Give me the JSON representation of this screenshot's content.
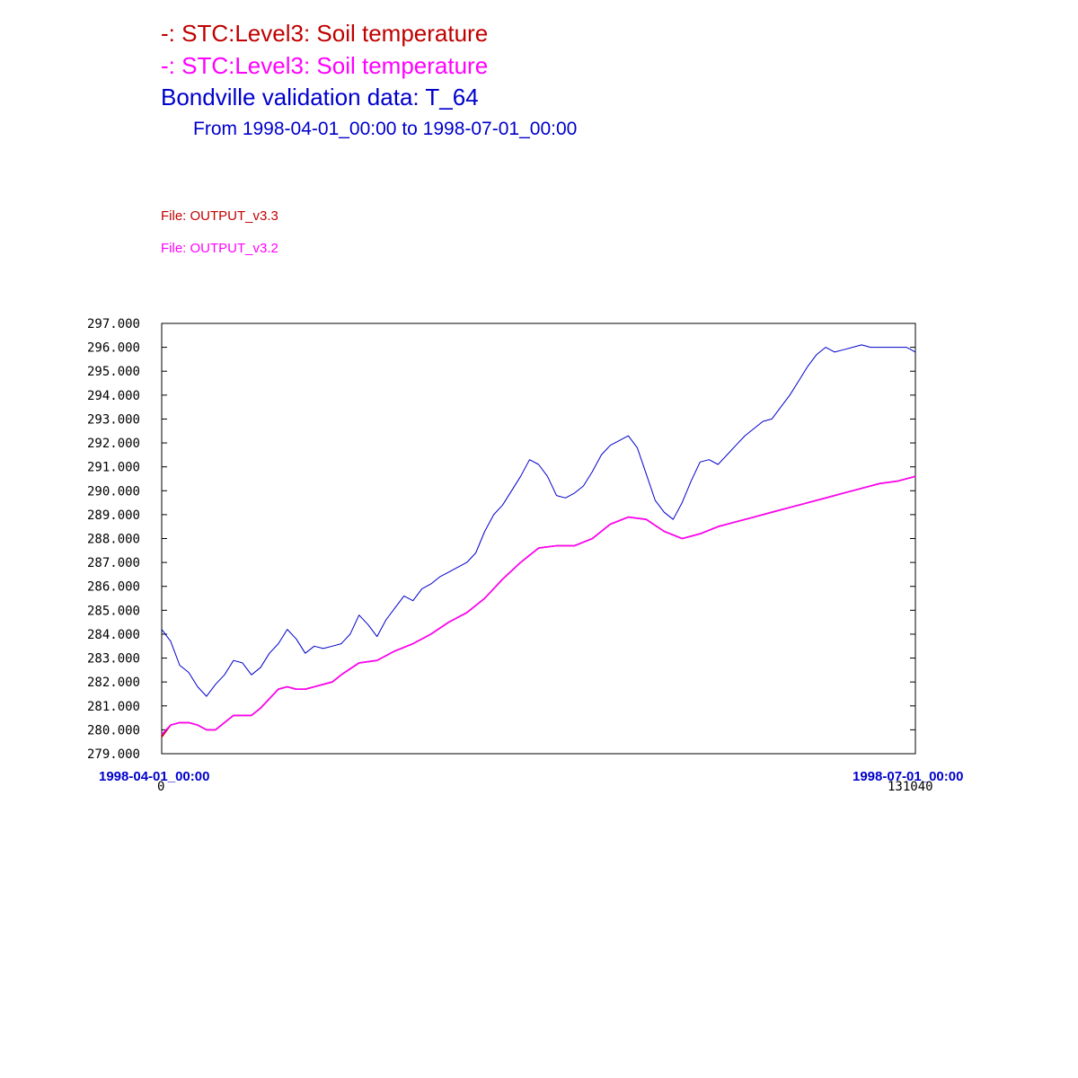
{
  "legend": {
    "series1": "-:  STC:Level3: Soil temperature",
    "series2": "-:  STC:Level3: Soil temperature",
    "observed": "Bondville validation data:  T_64",
    "period": "From 1998-04-01_00:00 to 1998-07-01_00:00",
    "file1": "File: OUTPUT_v3.3",
    "file2": "File: OUTPUT_v3.2"
  },
  "colors": {
    "series1": "#c00000",
    "series2": "#ff00ff",
    "observed": "#0000cc"
  },
  "chart_data": {
    "type": "line",
    "x_label_start": "1998-04-01_00:00",
    "x_label_end": "1998-07-01_00:00",
    "x_tick_start": "0",
    "x_tick_end": "131040",
    "xlim": [
      0,
      131040
    ],
    "ylim": [
      279,
      297
    ],
    "y_ticks": [
      "279.000",
      "280.000",
      "281.000",
      "282.000",
      "283.000",
      "284.000",
      "285.000",
      "286.000",
      "287.000",
      "288.000",
      "289.000",
      "290.000",
      "291.000",
      "292.000",
      "293.000",
      "294.000",
      "295.000",
      "296.000",
      "297.000"
    ],
    "grid": false,
    "series": [
      {
        "name": "STC:Level3: Soil temperature (OUTPUT_v3.3)",
        "color": "#c00000",
        "x": [
          0,
          1560,
          3120,
          4680,
          6240,
          7800,
          9360,
          10920,
          12480,
          14040,
          15600,
          17160,
          18720,
          20280,
          21840,
          23400,
          24960,
          26520,
          28080,
          29640,
          31200,
          34320,
          37440,
          40560,
          43680,
          46800,
          49920,
          53040,
          56160,
          59280,
          62400,
          65520,
          68640,
          71760,
          74880,
          78000,
          81120,
          84240,
          87360,
          90480,
          93600,
          96720,
          99840,
          102960,
          106080,
          109200,
          112320,
          115440,
          118560,
          121680,
          124800,
          127920,
          131040
        ],
        "values": [
          279.7,
          280.2,
          280.3,
          280.3,
          280.2,
          280.0,
          280.0,
          280.3,
          280.6,
          280.6,
          280.6,
          280.9,
          281.3,
          281.7,
          281.8,
          281.7,
          281.7,
          281.8,
          281.9,
          282.0,
          282.3,
          282.8,
          282.9,
          283.3,
          283.6,
          284.0,
          284.5,
          284.9,
          285.5,
          286.3,
          287.0,
          287.6,
          287.7,
          287.7,
          288.0,
          288.6,
          288.9,
          288.8,
          288.3,
          288.0,
          288.2,
          288.5,
          288.7,
          288.9,
          289.1,
          289.3,
          289.5,
          289.7,
          289.9,
          290.1,
          290.3,
          290.4,
          290.6
        ]
      },
      {
        "name": "STC:Level3: Soil temperature (OUTPUT_v3.2)",
        "color": "#ff00ff",
        "x": [
          0,
          1560,
          3120,
          4680,
          6240,
          7800,
          9360,
          10920,
          12480,
          14040,
          15600,
          17160,
          18720,
          20280,
          21840,
          23400,
          24960,
          26520,
          28080,
          29640,
          31200,
          34320,
          37440,
          40560,
          43680,
          46800,
          49920,
          53040,
          56160,
          59280,
          62400,
          65520,
          68640,
          71760,
          74880,
          78000,
          81120,
          84240,
          87360,
          90480,
          93600,
          96720,
          99840,
          102960,
          106080,
          109200,
          112320,
          115440,
          118560,
          121680,
          124800,
          127920,
          131040
        ],
        "values": [
          279.8,
          280.2,
          280.3,
          280.3,
          280.2,
          280.0,
          280.0,
          280.3,
          280.6,
          280.6,
          280.6,
          280.9,
          281.3,
          281.7,
          281.8,
          281.7,
          281.7,
          281.8,
          281.9,
          282.0,
          282.3,
          282.8,
          282.9,
          283.3,
          283.6,
          284.0,
          284.5,
          284.9,
          285.5,
          286.3,
          287.0,
          287.6,
          287.7,
          287.7,
          288.0,
          288.6,
          288.9,
          288.8,
          288.3,
          288.0,
          288.2,
          288.5,
          288.7,
          288.9,
          289.1,
          289.3,
          289.5,
          289.7,
          289.9,
          290.1,
          290.3,
          290.4,
          290.6
        ]
      },
      {
        "name": "Bondville validation data: T_64",
        "color": "#0000cc",
        "x": [
          0,
          1560,
          3120,
          4680,
          6240,
          7800,
          9360,
          10920,
          12480,
          14040,
          15600,
          17160,
          18720,
          20280,
          21840,
          23400,
          24960,
          26520,
          28080,
          29640,
          31200,
          32760,
          34320,
          35880,
          37440,
          39000,
          40560,
          42120,
          43680,
          45240,
          46800,
          48360,
          49920,
          51480,
          53040,
          54600,
          56160,
          57720,
          59280,
          60840,
          62400,
          63960,
          65520,
          67080,
          68640,
          70200,
          71760,
          73320,
          74880,
          76440,
          78000,
          79560,
          81120,
          82680,
          84240,
          85800,
          87360,
          88920,
          90480,
          92040,
          93600,
          95160,
          96720,
          98280,
          99840,
          101400,
          102960,
          104520,
          106080,
          107640,
          109200,
          110760,
          112320,
          113880,
          115440,
          117000,
          118560,
          120120,
          121680,
          123240,
          124800,
          126360,
          127920,
          129480,
          131040
        ],
        "values": [
          284.2,
          283.7,
          282.7,
          282.4,
          281.8,
          281.4,
          281.9,
          282.3,
          282.9,
          282.8,
          282.3,
          282.6,
          283.2,
          283.6,
          284.2,
          283.8,
          283.2,
          283.5,
          283.4,
          283.5,
          283.6,
          284.0,
          284.8,
          284.4,
          283.9,
          284.6,
          285.1,
          285.6,
          285.4,
          285.9,
          286.1,
          286.4,
          286.6,
          286.8,
          287.0,
          287.4,
          288.3,
          289.0,
          289.4,
          290.0,
          290.6,
          291.3,
          291.1,
          290.6,
          289.8,
          289.7,
          289.9,
          290.2,
          290.8,
          291.5,
          291.9,
          292.1,
          292.3,
          291.8,
          290.7,
          289.6,
          289.1,
          288.8,
          289.5,
          290.4,
          291.2,
          291.3,
          291.1,
          291.5,
          291.9,
          292.3,
          292.6,
          292.9,
          293.0,
          293.5,
          294.0,
          294.6,
          295.2,
          295.7,
          296.0,
          295.8,
          295.9,
          296.0,
          296.1,
          296.0,
          296.0,
          296.0,
          296.0,
          296.0,
          295.8
        ]
      }
    ]
  }
}
